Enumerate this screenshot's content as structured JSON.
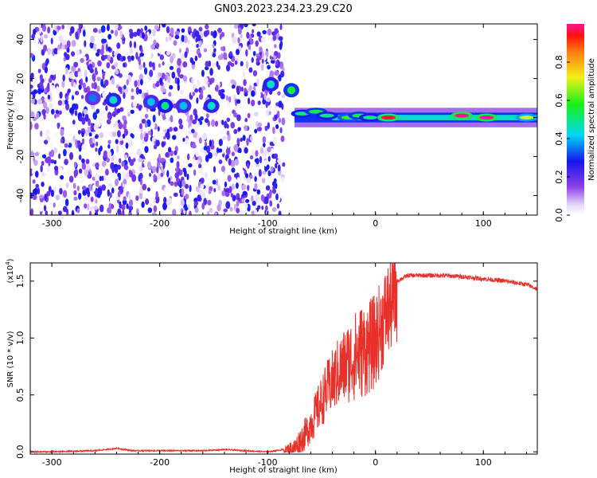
{
  "figure": {
    "title": "GN03.2023.234.23.29.C20"
  },
  "chart_data": [
    {
      "type": "heatmap",
      "xlabel": "Height of straight line (km)",
      "ylabel": "Frequency (Hz)",
      "xlim": [
        -320,
        150
      ],
      "ylim": [
        -50,
        48
      ],
      "xticks": [
        -300,
        -200,
        -100,
        0,
        100
      ],
      "xtick_labels": [
        "-300",
        "-200",
        "-100",
        "0",
        "100"
      ],
      "yticks": [
        -40,
        -20,
        0,
        20,
        40
      ],
      "ytick_labels": [
        "-40",
        "-20",
        "0",
        "20",
        "40"
      ],
      "colorbar": {
        "label": "Normalized spectral amplitude",
        "range": [
          0,
          1
        ],
        "ticks": [
          0.0,
          0.2,
          0.4,
          0.6,
          0.8
        ],
        "tick_labels": [
          "0.0",
          "0.2",
          "0.4",
          "0.6",
          "0.8"
        ],
        "colormap": "rainbow-white"
      },
      "noise_region": {
        "x": [
          -320,
          -85
        ],
        "y": [
          -50,
          48
        ],
        "amplitude": 0.3
      },
      "signal_band": {
        "center_hz": 0,
        "half_width_hz": 2.5,
        "x": [
          -75,
          150
        ],
        "amplitude": 0.45
      },
      "hotspots": [
        {
          "x": -262,
          "y": 10,
          "amplitude": 0.35
        },
        {
          "x": -243,
          "y": 9,
          "amplitude": 0.45
        },
        {
          "x": -208,
          "y": 8,
          "amplitude": 0.4
        },
        {
          "x": -195,
          "y": 6,
          "amplitude": 0.5
        },
        {
          "x": -178,
          "y": 6,
          "amplitude": 0.4
        },
        {
          "x": -152,
          "y": 6,
          "amplitude": 0.45
        },
        {
          "x": -97,
          "y": 17,
          "amplitude": 0.45
        },
        {
          "x": -78,
          "y": 14,
          "amplitude": 0.55
        },
        {
          "x": -68,
          "y": 2,
          "amplitude": 0.5
        },
        {
          "x": -55,
          "y": 3,
          "amplitude": 0.55
        },
        {
          "x": -45,
          "y": 1,
          "amplitude": 0.5
        },
        {
          "x": -25,
          "y": 0,
          "amplitude": 0.6
        },
        {
          "x": -15,
          "y": 1,
          "amplitude": 0.55
        },
        {
          "x": -5,
          "y": 0,
          "amplitude": 0.5
        },
        {
          "x": 12,
          "y": 0,
          "amplitude": 0.95
        },
        {
          "x": 80,
          "y": 1,
          "amplitude": 1.0
        },
        {
          "x": 103,
          "y": 0,
          "amplitude": 1.0
        },
        {
          "x": 140,
          "y": 0,
          "amplitude": 0.7
        }
      ]
    },
    {
      "type": "line",
      "xlabel": "Height of straight line (km)",
      "ylabel": "SNR (10 * v/v)",
      "scale_label": "(x10",
      "scale_exponent": "4",
      "scale_suffix": ")",
      "xlim": [
        -320,
        150
      ],
      "ylim": [
        -0.02,
        1.66
      ],
      "xticks": [
        -300,
        -200,
        -100,
        0,
        100
      ],
      "xtick_labels": [
        "-300",
        "-200",
        "-100",
        "0",
        "100"
      ],
      "yticks": [
        0.0,
        0.5,
        1.0,
        1.5
      ],
      "ytick_labels": [
        "0.0",
        "0.5",
        "1.0",
        "1.5"
      ],
      "series": [
        {
          "color": "#e8302b",
          "x": [
            -320,
            -300,
            -260,
            -240,
            -225,
            -200,
            -180,
            -160,
            -140,
            -120,
            -100,
            -85,
            -75,
            -65,
            -55,
            -45,
            -35,
            -25,
            -15,
            -5,
            0,
            10,
            20,
            30,
            40,
            60,
            80,
            100,
            120,
            140,
            150
          ],
          "y": [
            0.0,
            0.0,
            0.01,
            0.03,
            0.01,
            0.01,
            0.01,
            0.01,
            0.02,
            0.01,
            0.0,
            0.02,
            0.06,
            0.2,
            0.4,
            0.62,
            0.78,
            0.9,
            1.0,
            1.05,
            1.1,
            1.35,
            1.5,
            1.55,
            1.55,
            1.55,
            1.54,
            1.52,
            1.5,
            1.47,
            1.43
          ]
        }
      ]
    }
  ]
}
